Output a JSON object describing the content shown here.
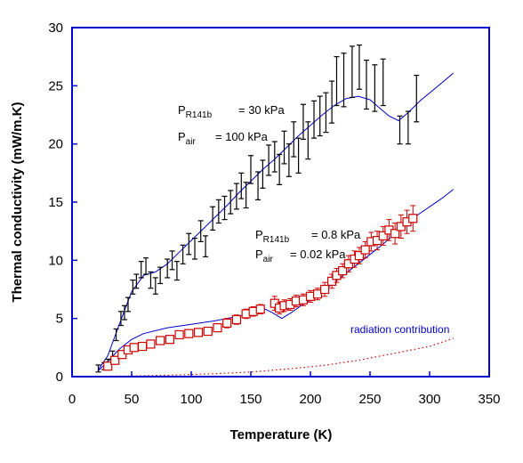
{
  "chart_data": {
    "type": "scatter",
    "title": "",
    "xlabel": "Temperature  (K)",
    "ylabel": "Thermal conductivity (mW/m.K)",
    "xlim": [
      0,
      350
    ],
    "ylim": [
      0,
      30
    ],
    "xticks": [
      0,
      50,
      100,
      150,
      200,
      250,
      300,
      350
    ],
    "yticks": [
      0,
      5,
      10,
      15,
      20,
      25,
      30
    ],
    "grid": false,
    "colors": {
      "high_pressure": "#000000",
      "low_pressure": "#cc0000",
      "fit": "#0000cc",
      "radiation": "#cc0000",
      "frame": "#0000cc"
    },
    "annotations": {
      "high": {
        "p_sym": "P",
        "p_sub": "R141b",
        "p_val": "= 30 kPa",
        "a_sym": "P",
        "a_sub": "air",
        "a_val": "= 100 kPa"
      },
      "low": {
        "p_sym": "P",
        "p_sub": "R141b",
        "p_val": "= 0.8 kPa",
        "a_sym": "P",
        "a_sub": "air",
        "a_val": "= 0.02 kPa"
      },
      "radiation": "radiation contribution"
    },
    "series": [
      {
        "name": "",
        "marker": "errorbar",
        "points": [
          [
            22,
            0.7,
            0.3
          ],
          [
            27,
            0.9,
            0.3
          ],
          [
            30,
            1.2,
            0.3
          ],
          [
            34,
            1.8,
            0.4
          ],
          [
            37,
            3.6,
            0.5
          ],
          [
            41,
            5.0,
            0.6
          ],
          [
            44,
            5.5,
            0.6
          ],
          [
            47,
            6.2,
            0.6
          ],
          [
            51,
            7.7,
            0.6
          ],
          [
            54,
            8.2,
            0.6
          ],
          [
            58,
            9.2,
            0.7
          ],
          [
            62,
            9.5,
            0.7
          ],
          [
            66,
            8.3,
            0.7
          ],
          [
            70,
            7.8,
            0.7
          ],
          [
            74,
            8.7,
            0.7
          ],
          [
            80,
            9.3,
            0.8
          ],
          [
            84,
            10.0,
            0.8
          ],
          [
            88,
            9.1,
            0.8
          ],
          [
            93,
            10.5,
            0.8
          ],
          [
            98,
            11.4,
            0.9
          ],
          [
            103,
            11.0,
            0.9
          ],
          [
            108,
            12.5,
            0.9
          ],
          [
            112,
            11.2,
            0.9
          ],
          [
            118,
            13.6,
            1.0
          ],
          [
            123,
            14.2,
            1.0
          ],
          [
            128,
            14.5,
            1.0
          ],
          [
            133,
            15.0,
            1.0
          ],
          [
            138,
            15.5,
            1.1
          ],
          [
            142,
            16.4,
            1.1
          ],
          [
            146,
            15.6,
            1.1
          ],
          [
            150,
            17.8,
            1.2
          ],
          [
            156,
            16.4,
            1.2
          ],
          [
            160,
            17.4,
            1.2
          ],
          [
            165,
            18.6,
            1.3
          ],
          [
            170,
            18.9,
            1.3
          ],
          [
            174,
            17.8,
            1.3
          ],
          [
            178,
            19.7,
            1.4
          ],
          [
            182,
            18.6,
            1.4
          ],
          [
            186,
            20.4,
            1.5
          ],
          [
            190,
            19.0,
            1.5
          ],
          [
            194,
            21.9,
            1.5
          ],
          [
            198,
            20.3,
            1.6
          ],
          [
            203,
            22.1,
            1.6
          ],
          [
            208,
            22.4,
            1.7
          ],
          [
            213,
            22.7,
            1.7
          ],
          [
            218,
            23.6,
            1.8
          ],
          [
            222,
            25.4,
            2.1
          ],
          [
            228,
            25.5,
            2.3
          ],
          [
            235,
            26.2,
            2.2
          ],
          [
            241,
            26.6,
            1.9
          ],
          [
            247,
            25.1,
            2.1
          ],
          [
            254,
            24.8,
            2.0
          ],
          [
            261,
            25.3,
            2.0
          ],
          [
            275,
            21.2,
            1.2
          ],
          [
            282,
            21.4,
            1.4
          ],
          [
            289,
            23.9,
            2.0
          ]
        ]
      },
      {
        "name": "",
        "marker": "open-square-errorbar",
        "points": [
          [
            30,
            0.9,
            0.2
          ],
          [
            36,
            1.4,
            0.2
          ],
          [
            42,
            1.9,
            0.3
          ],
          [
            47,
            2.3,
            0.3
          ],
          [
            52,
            2.5,
            0.3
          ],
          [
            59,
            2.6,
            0.3
          ],
          [
            66,
            2.8,
            0.3
          ],
          [
            74,
            3.1,
            0.3
          ],
          [
            82,
            3.2,
            0.3
          ],
          [
            90,
            3.6,
            0.3
          ],
          [
            98,
            3.7,
            0.3
          ],
          [
            106,
            3.8,
            0.3
          ],
          [
            114,
            3.9,
            0.3
          ],
          [
            122,
            4.2,
            0.3
          ],
          [
            130,
            4.6,
            0.4
          ],
          [
            138,
            4.9,
            0.4
          ],
          [
            146,
            5.4,
            0.4
          ],
          [
            152,
            5.6,
            0.4
          ],
          [
            158,
            5.8,
            0.4
          ],
          [
            170,
            6.3,
            0.6
          ],
          [
            174,
            5.9,
            0.5
          ],
          [
            178,
            6.1,
            0.5
          ],
          [
            183,
            6.2,
            0.5
          ],
          [
            188,
            6.5,
            0.5
          ],
          [
            194,
            6.6,
            0.5
          ],
          [
            200,
            6.9,
            0.5
          ],
          [
            206,
            7.1,
            0.5
          ],
          [
            212,
            7.5,
            0.6
          ],
          [
            218,
            8.2,
            0.6
          ],
          [
            222,
            8.7,
            0.6
          ],
          [
            227,
            9.1,
            0.6
          ],
          [
            232,
            9.7,
            0.7
          ],
          [
            237,
            10.1,
            0.7
          ],
          [
            241,
            10.4,
            0.7
          ],
          [
            246,
            10.9,
            0.7
          ],
          [
            251,
            11.6,
            0.8
          ],
          [
            256,
            11.7,
            0.8
          ],
          [
            261,
            12.1,
            0.8
          ],
          [
            266,
            12.6,
            0.9
          ],
          [
            271,
            12.3,
            0.9
          ],
          [
            276,
            12.9,
            1.0
          ],
          [
            281,
            13.3,
            1.0
          ],
          [
            286,
            13.6,
            1.1
          ]
        ]
      },
      {
        "name": "",
        "style": "line",
        "points": [
          [
            22,
            0.6
          ],
          [
            30,
            1.8
          ],
          [
            40,
            4.6
          ],
          [
            50,
            7.3
          ],
          [
            60,
            8.7
          ],
          [
            70,
            9.0
          ],
          [
            80,
            9.7
          ],
          [
            90,
            10.7
          ],
          [
            100,
            11.7
          ],
          [
            110,
            12.7
          ],
          [
            120,
            13.7
          ],
          [
            130,
            14.7
          ],
          [
            140,
            15.8
          ],
          [
            150,
            16.8
          ],
          [
            160,
            17.8
          ],
          [
            170,
            18.7
          ],
          [
            180,
            19.7
          ],
          [
            190,
            20.7
          ],
          [
            200,
            21.6
          ],
          [
            210,
            22.5
          ],
          [
            220,
            23.3
          ],
          [
            230,
            23.9
          ],
          [
            240,
            24.1
          ],
          [
            250,
            23.8
          ],
          [
            258,
            23.1
          ],
          [
            266,
            22.4
          ],
          [
            274,
            22.0
          ],
          [
            282,
            22.7
          ],
          [
            292,
            23.7
          ],
          [
            305,
            24.8
          ],
          [
            320,
            26.1
          ]
        ]
      },
      {
        "name": "",
        "style": "line",
        "points": [
          [
            22,
            0.5
          ],
          [
            30,
            1.3
          ],
          [
            40,
            2.4
          ],
          [
            50,
            3.2
          ],
          [
            60,
            3.7
          ],
          [
            80,
            4.2
          ],
          [
            100,
            4.5
          ],
          [
            120,
            4.8
          ],
          [
            140,
            5.2
          ],
          [
            150,
            5.5
          ],
          [
            160,
            5.9
          ],
          [
            168,
            5.5
          ],
          [
            176,
            5.0
          ],
          [
            184,
            5.5
          ],
          [
            192,
            6.1
          ],
          [
            200,
            6.6
          ],
          [
            210,
            7.3
          ],
          [
            220,
            8.1
          ],
          [
            230,
            8.9
          ],
          [
            240,
            9.7
          ],
          [
            250,
            10.5
          ],
          [
            260,
            11.3
          ],
          [
            270,
            12.2
          ],
          [
            280,
            13.1
          ],
          [
            290,
            13.9
          ],
          [
            300,
            14.6
          ],
          [
            310,
            15.3
          ],
          [
            320,
            16.1
          ]
        ]
      },
      {
        "name": "radiation contribution",
        "style": "dotted",
        "points": [
          [
            30,
            0.03
          ],
          [
            60,
            0.08
          ],
          [
            90,
            0.15
          ],
          [
            120,
            0.25
          ],
          [
            150,
            0.4
          ],
          [
            180,
            0.65
          ],
          [
            210,
            0.95
          ],
          [
            240,
            1.4
          ],
          [
            270,
            2.0
          ],
          [
            300,
            2.6
          ],
          [
            320,
            3.3
          ]
        ]
      }
    ]
  }
}
